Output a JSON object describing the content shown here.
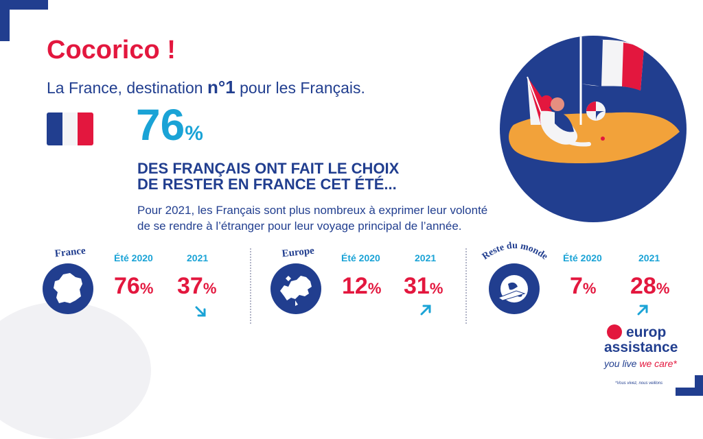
{
  "header": {
    "title": "Cocorico !",
    "subtitle_pre": "La France, destination ",
    "subtitle_bold": "n°1",
    "subtitle_post": " pour les Français."
  },
  "main_stat": {
    "value": "76",
    "unit": "%",
    "headline_line1": "DES FRANÇAIS ONT FAIT LE CHOIX",
    "headline_line2": "DE RESTER EN FRANCE CET ÉTÉ...",
    "description_line1": "Pour 2021, les Français sont plus nombreux à exprimer leur volonté",
    "description_line2": "de se rendre à l’étranger pour leur voyage principal de l’année."
  },
  "regions": [
    {
      "name": "France",
      "label_2020": "Été 2020",
      "label_2021": "2021",
      "value_2020": "76",
      "value_2021": "37",
      "unit": "%",
      "trend": "down"
    },
    {
      "name": "Europe",
      "label_2020": "Été 2020",
      "label_2021": "2021",
      "value_2020": "12",
      "value_2021": "31",
      "unit": "%",
      "trend": "up"
    },
    {
      "name": "Reste du monde",
      "label_2020": "Été 2020",
      "label_2021": "2021",
      "value_2020": "7",
      "value_2021": "28",
      "unit": "%",
      "trend": "up"
    }
  ],
  "brand": {
    "name_line1": "europ",
    "name_line2": "assistance",
    "tagline_a": "you live",
    "tagline_b": "we care*",
    "footnote": "*Vous vivez, nous veillons"
  },
  "colors": {
    "brand_blue": "#213e8f",
    "accent_red": "#e3173e",
    "accent_cyan": "#1aa3d6",
    "sand_orange": "#f2a23a"
  },
  "icons": {
    "flag": "france-flag-icon",
    "hero": "beach-couple-illustration",
    "france": "france-map-icon",
    "europe": "europe-map-icon",
    "world": "globe-plane-icon",
    "trend_down": "arrow-down-right-icon",
    "trend_up": "arrow-up-right-icon"
  }
}
